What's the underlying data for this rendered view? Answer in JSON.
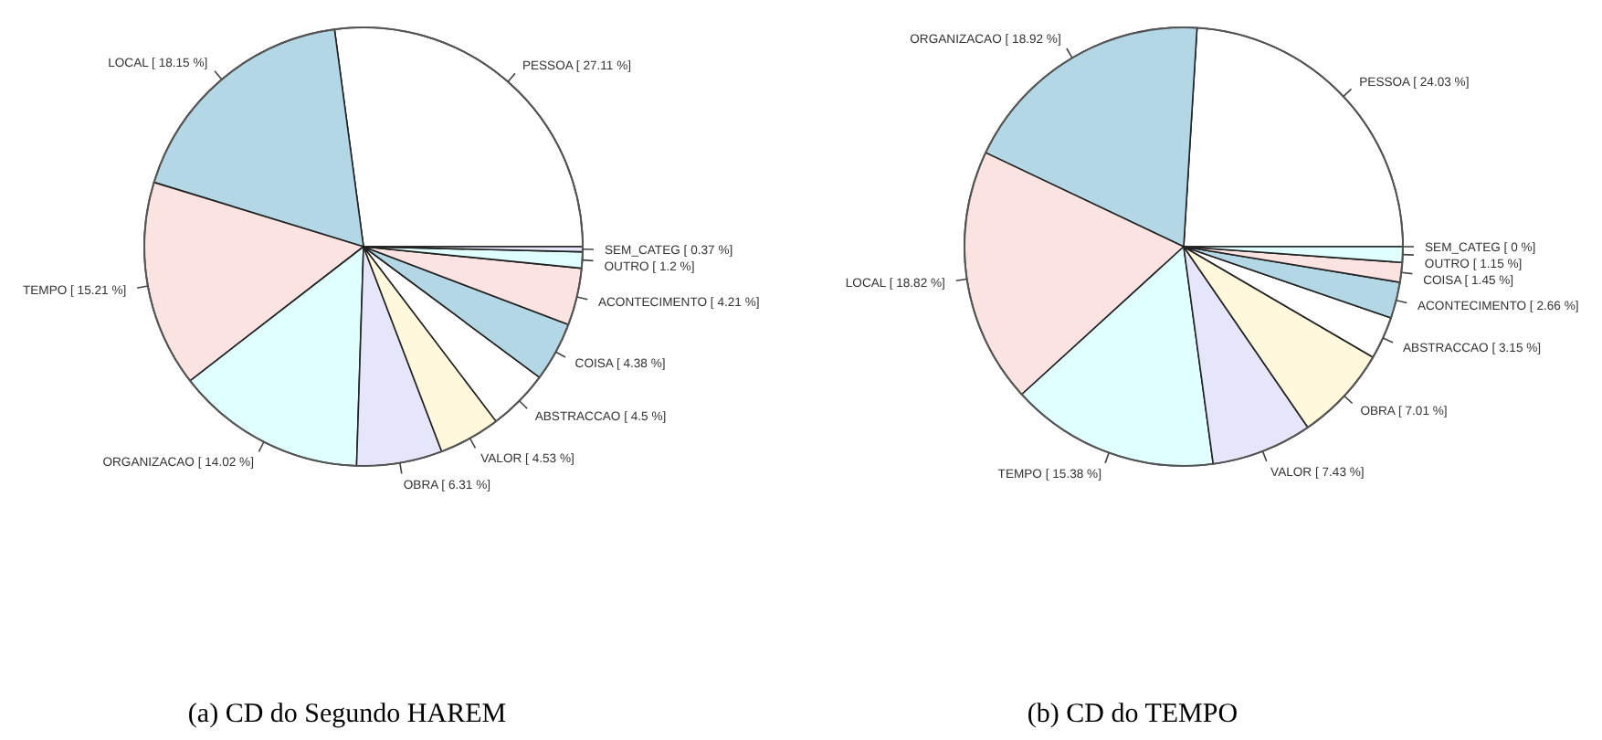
{
  "chart_data": [
    {
      "type": "pie",
      "title": "(a)  CD do Segundo HAREM",
      "categories": [
        "PESSOA",
        "LOCAL",
        "TEMPO",
        "ORGANIZACAO",
        "OBRA",
        "VALOR",
        "ABSTRACCAO",
        "COISA",
        "ACONTECIMENTO",
        "OUTRO",
        "SEM_CATEG"
      ],
      "values": [
        27.11,
        18.15,
        15.21,
        14.02,
        6.31,
        4.53,
        4.5,
        4.38,
        4.21,
        1.2,
        0.37
      ],
      "value_labels": [
        "[ 27.11 %]",
        "[ 18.15 %]",
        "[ 15.21 %]",
        "[ 14.02 %]",
        "[ 6.31 %]",
        "[ 4.53 %]",
        "[ 4.5 %]",
        "[ 4.38 %]",
        "[ 4.21 %]",
        "[ 1.2 %]",
        "[ 0.37 %]"
      ],
      "colors": [
        "#ffffff",
        "#b3d7e5",
        "#fae3e0",
        "#e0ffff",
        "#e6e6fa",
        "#fff8dc",
        "#ffffff",
        "#b3d7e5",
        "#fae3e0",
        "#e0ffff",
        "#e6e6fa"
      ]
    },
    {
      "type": "pie",
      "title": "(b)  CD do TEMPO",
      "categories": [
        "PESSOA",
        "ORGANIZACAO",
        "LOCAL",
        "TEMPO",
        "VALOR",
        "OBRA",
        "ABSTRACCAO",
        "ACONTECIMENTO",
        "COISA",
        "OUTRO",
        "SEM_CATEG"
      ],
      "values": [
        24.03,
        18.92,
        18.82,
        15.38,
        7.43,
        7.01,
        3.15,
        2.66,
        1.45,
        1.15,
        0
      ],
      "value_labels": [
        "[ 24.03 %]",
        "[ 18.92 %]",
        "[ 18.82 %]",
        "[ 15.38 %]",
        "[ 7.43 %]",
        "[ 7.01 %]",
        "[ 3.15 %]",
        "[ 2.66 %]",
        "[ 1.45 %]",
        "[ 1.15 %]",
        "[ 0 %]"
      ],
      "colors": [
        "#ffffff",
        "#b3d7e5",
        "#fae3e0",
        "#e0ffff",
        "#e6e6fa",
        "#fff8dc",
        "#ffffff",
        "#b3d7e5",
        "#fae3e0",
        "#e0ffff",
        "#e6e6fa"
      ]
    }
  ]
}
